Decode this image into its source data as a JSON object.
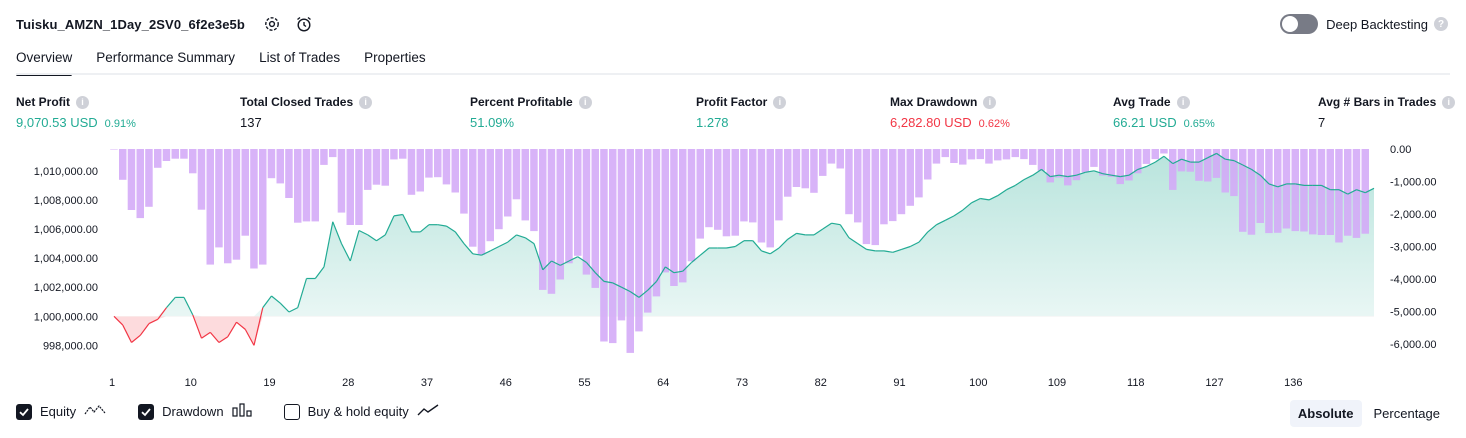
{
  "header": {
    "title": "Tuisku_AMZN_1Day_2SV0_6f2e3e5b",
    "deep_backtesting_label": "Deep Backtesting"
  },
  "tabs": [
    {
      "label": "Overview",
      "active": true
    },
    {
      "label": "Performance Summary",
      "active": false
    },
    {
      "label": "List of Trades",
      "active": false
    },
    {
      "label": "Properties",
      "active": false
    }
  ],
  "metrics": [
    {
      "label": "Net Profit",
      "value": "9,070.53 USD",
      "pct": "0.91%",
      "color": "#22ab94"
    },
    {
      "label": "Total Closed Trades",
      "value": "137",
      "pct": "",
      "color": "#131722"
    },
    {
      "label": "Percent Profitable",
      "value": "51.09%",
      "pct": "",
      "color": "#22ab94"
    },
    {
      "label": "Profit Factor",
      "value": "1.278",
      "pct": "",
      "color": "#22ab94"
    },
    {
      "label": "Max Drawdown",
      "value": "6,282.80 USD",
      "pct": "0.62%",
      "color": "#f23645"
    },
    {
      "label": "Avg Trade",
      "value": "66.21 USD",
      "pct": "0.65%",
      "color": "#22ab94"
    },
    {
      "label": "Avg # Bars in Trades",
      "value": "7",
      "pct": "",
      "color": "#131722"
    }
  ],
  "legend": {
    "equity": "Equity",
    "drawdown": "Drawdown",
    "buyhold": "Buy & hold equity"
  },
  "mode": {
    "absolute": "Absolute",
    "percentage": "Percentage"
  },
  "chart_data": {
    "type": "line",
    "x_ticks": [
      "1",
      "10",
      "19",
      "28",
      "37",
      "46",
      "55",
      "64",
      "73",
      "82",
      "91",
      "100",
      "109",
      "118",
      "127",
      "136"
    ],
    "left_ticks": [
      "1,010,000.00",
      "1,008,000.00",
      "1,006,000.00",
      "1,004,000.00",
      "1,002,000.00",
      "1,000,000.00",
      "998,000.00"
    ],
    "right_ticks": [
      "0.00",
      "-1,000.00",
      "-2,000.00",
      "-3,000.00",
      "-4,000.00",
      "-5,000.00",
      "-6,000.00"
    ],
    "ylim_left": [
      997000,
      1011500
    ],
    "ylim_right": [
      -6500,
      0
    ],
    "baseline": 1000000,
    "colors": {
      "equity_line": "#22ab94",
      "equity_fill": "#22ab94",
      "loss_line": "#f23645",
      "drawdown": "#d3a8f7",
      "drawdown_overlap": "#a9b3e8"
    },
    "series": [
      {
        "name": "Equity",
        "values": [
          1000000,
          999400,
          998200,
          998700,
          999500,
          999800,
          1000600,
          1001300,
          1001300,
          1000100,
          998500,
          998900,
          998200,
          998600,
          999600,
          999100,
          998000,
          1000600,
          1001400,
          1000900,
          1000300,
          1000600,
          1002600,
          1002600,
          1003400,
          1006500,
          1005000,
          1003800,
          1005900,
          1005600,
          1005200,
          1005600,
          1006900,
          1007000,
          1005800,
          1005800,
          1006300,
          1006300,
          1006200,
          1005800,
          1005000,
          1004300,
          1004200,
          1004500,
          1004800,
          1005100,
          1005600,
          1005400,
          1005000,
          1003200,
          1003800,
          1003500,
          1003800,
          1004100,
          1003700,
          1003000,
          1002400,
          1002300,
          1002000,
          1001700,
          1001300,
          1001800,
          1002400,
          1003400,
          1003000,
          1003100,
          1003700,
          1004200,
          1004700,
          1004700,
          1004700,
          1004800,
          1005200,
          1005200,
          1004500,
          1004300,
          1004700,
          1005300,
          1005700,
          1005600,
          1005600,
          1006000,
          1006400,
          1006300,
          1005400,
          1005000,
          1004600,
          1004500,
          1004500,
          1004400,
          1004600,
          1004800,
          1005100,
          1005800,
          1006300,
          1006600,
          1006900,
          1007300,
          1007800,
          1008100,
          1008000,
          1008300,
          1008700,
          1009000,
          1009400,
          1009700,
          1010100,
          1009600,
          1009700,
          1009600,
          1009700,
          1009900,
          1010000,
          1009800,
          1009700,
          1009600,
          1009700,
          1010100,
          1010300,
          1010600,
          1011000,
          1010500,
          1010800,
          1010600,
          1010600,
          1010900,
          1011200,
          1010800,
          1010700,
          1010400,
          1010100,
          1009700,
          1009100,
          1008900,
          1009100,
          1009100,
          1009000,
          1009000,
          1009000,
          1008700,
          1008700,
          1008400,
          1008700,
          1008500,
          1008800
        ]
      },
      {
        "name": "Drawdown",
        "values": [
          0,
          -950,
          -1880,
          -2130,
          -1780,
          -580,
          -370,
          -300,
          -300,
          -750,
          -1870,
          -3560,
          -3030,
          -3520,
          -3410,
          -2670,
          -3680,
          -3560,
          -900,
          -1060,
          -1510,
          -2270,
          -2230,
          -2230,
          -490,
          -250,
          -1960,
          -2340,
          -2340,
          -1260,
          -1100,
          -1130,
          -320,
          -300,
          -1410,
          -1310,
          -880,
          -870,
          -1090,
          -1340,
          -1990,
          -3010,
          -3260,
          -2840,
          -2470,
          -2080,
          -1550,
          -2200,
          -2530,
          -4340,
          -4460,
          -4020,
          -3520,
          -3290,
          -3870,
          -4280,
          -5930,
          -5980,
          -5280,
          -6280,
          -5620,
          -5040,
          -4540,
          -3800,
          -4220,
          -4110,
          -3460,
          -2760,
          -2410,
          -2490,
          -2690,
          -2670,
          -2230,
          -2260,
          -2880,
          -3030,
          -2200,
          -1470,
          -1170,
          -1210,
          -1350,
          -830,
          -450,
          -600,
          -2010,
          -2260,
          -2930,
          -2960,
          -2320,
          -2220,
          -2010,
          -1750,
          -1490,
          -940,
          -450,
          -250,
          -430,
          -480,
          -320,
          -310,
          -450,
          -350,
          -320,
          -250,
          -310,
          -490,
          -670,
          -1030,
          -880,
          -1120,
          -960,
          -720,
          -550,
          -820,
          -860,
          -1080,
          -970,
          -750,
          -460,
          -310,
          -140,
          -1260,
          -690,
          -700,
          -980,
          -1000,
          -890,
          -1340,
          -1450,
          -2550,
          -2640,
          -2280,
          -2590,
          -2580,
          -2450,
          -2530,
          -2540,
          -2630,
          -2650,
          -2650,
          -2880,
          -2670,
          -2740,
          -2610
        ]
      }
    ]
  }
}
